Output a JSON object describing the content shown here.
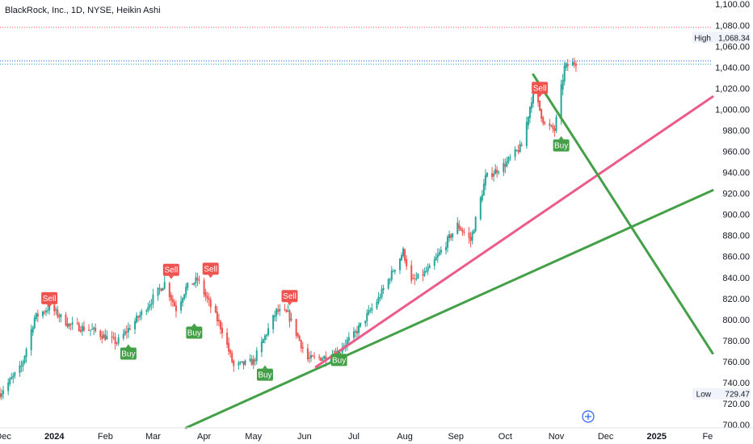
{
  "header": {
    "title": "BlackRock, Inc., 1D, NYSE, Heikin Ashi"
  },
  "chart_data": {
    "type": "candlestick",
    "style": "heikin-ashi",
    "y_ticks": [
      700,
      720,
      740,
      760,
      780,
      800,
      820,
      840,
      860,
      880,
      900,
      920,
      940,
      960,
      980,
      1000,
      1020,
      1040,
      1060,
      1080,
      1100
    ],
    "y_tick_labels": [
      "700.00",
      "720.00",
      "740.00",
      "760.00",
      "780.00",
      "800.00",
      "820.00",
      "840.00",
      "860.00",
      "880.00",
      "900.00",
      "920.00",
      "940.00",
      "960.00",
      "980.00",
      "1,000.00",
      "1,020.00",
      "1,040.00",
      "1,060.00",
      "1,080.00",
      "1,100.00"
    ],
    "ylim": [
      697,
      1104
    ],
    "x_ticks": [
      {
        "label": "Dec",
        "date": "2023-12-01",
        "bold": false
      },
      {
        "label": "2024",
        "date": "2024-01-01",
        "bold": true
      },
      {
        "label": "Feb",
        "date": "2024-02-01",
        "bold": false
      },
      {
        "label": "Mar",
        "date": "2024-03-01",
        "bold": false
      },
      {
        "label": "Apr",
        "date": "2024-04-01",
        "bold": false
      },
      {
        "label": "May",
        "date": "2024-05-01",
        "bold": false
      },
      {
        "label": "Jun",
        "date": "2024-06-01",
        "bold": false
      },
      {
        "label": "Jul",
        "date": "2024-07-01",
        "bold": false
      },
      {
        "label": "Aug",
        "date": "2024-08-01",
        "bold": false
      },
      {
        "label": "Sep",
        "date": "2024-09-01",
        "bold": false
      },
      {
        "label": "Oct",
        "date": "2024-10-01",
        "bold": false
      },
      {
        "label": "Nov",
        "date": "2024-11-01",
        "bold": false
      },
      {
        "label": "Dec",
        "date": "2024-12-01",
        "bold": false
      },
      {
        "label": "2025",
        "date": "2025-01-01",
        "bold": true
      },
      {
        "label": "Fe",
        "date": "2025-02-01",
        "bold": false
      }
    ],
    "xlim": [
      "2023-11-29",
      "2025-02-04"
    ],
    "price_path": [
      {
        "date": "2023-11-29",
        "price": 730
      },
      {
        "date": "2023-12-12",
        "price": 755
      },
      {
        "date": "2023-12-20",
        "price": 802
      },
      {
        "date": "2023-12-29",
        "price": 812
      },
      {
        "date": "2024-01-10",
        "price": 795
      },
      {
        "date": "2024-01-24",
        "price": 790
      },
      {
        "date": "2024-02-08",
        "price": 778
      },
      {
        "date": "2024-02-23",
        "price": 806
      },
      {
        "date": "2024-03-08",
        "price": 835
      },
      {
        "date": "2024-03-15",
        "price": 810
      },
      {
        "date": "2024-03-21",
        "price": 830
      },
      {
        "date": "2024-03-28",
        "price": 838
      },
      {
        "date": "2024-04-12",
        "price": 790
      },
      {
        "date": "2024-04-19",
        "price": 755
      },
      {
        "date": "2024-05-01",
        "price": 760
      },
      {
        "date": "2024-05-15",
        "price": 808
      },
      {
        "date": "2024-05-22",
        "price": 805
      },
      {
        "date": "2024-06-03",
        "price": 762
      },
      {
        "date": "2024-06-17",
        "price": 765
      },
      {
        "date": "2024-07-01",
        "price": 785
      },
      {
        "date": "2024-07-16",
        "price": 820
      },
      {
        "date": "2024-07-31",
        "price": 865
      },
      {
        "date": "2024-08-05",
        "price": 835
      },
      {
        "date": "2024-08-16",
        "price": 848
      },
      {
        "date": "2024-09-02",
        "price": 890
      },
      {
        "date": "2024-09-10",
        "price": 875
      },
      {
        "date": "2024-09-19",
        "price": 935
      },
      {
        "date": "2024-10-01",
        "price": 948
      },
      {
        "date": "2024-10-11",
        "price": 965
      },
      {
        "date": "2024-10-18",
        "price": 1018
      },
      {
        "date": "2024-10-25",
        "price": 985
      },
      {
        "date": "2024-10-31",
        "price": 980
      },
      {
        "date": "2024-11-06",
        "price": 1040
      },
      {
        "date": "2024-11-13",
        "price": 1045
      }
    ],
    "trend_lines": [
      {
        "color": "#43a047",
        "from": {
          "date": "2024-03-21",
          "price": 697
        },
        "to": {
          "date": "2025-02-04",
          "price": 923
        }
      },
      {
        "color": "#ec5b8a",
        "from": {
          "date": "2024-06-08",
          "price": 755
        },
        "to": {
          "date": "2025-02-04",
          "price": 1012
        }
      },
      {
        "color": "#43a047",
        "from": {
          "date": "2024-10-18",
          "price": 1033
        },
        "to": {
          "date": "2025-02-04",
          "price": 768
        }
      }
    ],
    "reference_lines": [
      {
        "price": 1078,
        "color": "#ef5350",
        "style": "dotted"
      },
      {
        "price": 1046,
        "color": "#2962ff",
        "style": "dotted"
      },
      {
        "price": 1043,
        "color": "#26a69a",
        "style": "dotted"
      }
    ],
    "price_markers": [
      {
        "label": "High",
        "value": "1,068.34",
        "price": 1068.34
      },
      {
        "label": "Low",
        "value": "729.47",
        "price": 729.47
      }
    ],
    "signals": [
      {
        "type": "sell",
        "label": "Sell",
        "date": "2023-12-29",
        "price": 810
      },
      {
        "type": "buy",
        "label": "Buy",
        "date": "2024-02-15",
        "price": 778
      },
      {
        "type": "sell",
        "label": "Sell",
        "date": "2024-03-12",
        "price": 837
      },
      {
        "type": "buy",
        "label": "Buy",
        "date": "2024-03-26",
        "price": 798
      },
      {
        "type": "sell",
        "label": "Sell",
        "date": "2024-04-05",
        "price": 838
      },
      {
        "type": "buy",
        "label": "Buy",
        "date": "2024-05-08",
        "price": 758
      },
      {
        "type": "sell",
        "label": "Sell",
        "date": "2024-05-23",
        "price": 812
      },
      {
        "type": "buy",
        "label": "Buy",
        "date": "2024-06-22",
        "price": 772
      },
      {
        "type": "sell",
        "label": "Sell",
        "date": "2024-10-22",
        "price": 1010
      },
      {
        "type": "buy",
        "label": "Buy",
        "date": "2024-11-04",
        "price": 976
      }
    ],
    "colors": {
      "up": "#26a69a",
      "down": "#ef5350",
      "buy": "#43a047",
      "sell": "#ef5350"
    },
    "grid": false
  }
}
